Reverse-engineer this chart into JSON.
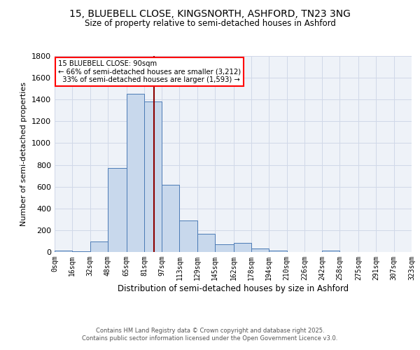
{
  "title_line1": "15, BLUEBELL CLOSE, KINGSNORTH, ASHFORD, TN23 3NG",
  "title_line2": "Size of property relative to semi-detached houses in Ashford",
  "xlabel": "Distribution of semi-detached houses by size in Ashford",
  "ylabel": "Number of semi-detached properties",
  "bar_edges": [
    0,
    16,
    32,
    48,
    65,
    81,
    97,
    113,
    129,
    145,
    162,
    178,
    194,
    210,
    226,
    242,
    258,
    275,
    291,
    307,
    323
  ],
  "bar_heights": [
    10,
    5,
    95,
    770,
    1450,
    1380,
    615,
    290,
    170,
    70,
    85,
    30,
    15,
    0,
    0,
    10,
    0,
    0,
    0,
    0
  ],
  "tick_labels": [
    "0sqm",
    "16sqm",
    "32sqm",
    "48sqm",
    "65sqm",
    "81sqm",
    "97sqm",
    "113sqm",
    "129sqm",
    "145sqm",
    "162sqm",
    "178sqm",
    "194sqm",
    "210sqm",
    "226sqm",
    "242sqm",
    "258sqm",
    "275sqm",
    "291sqm",
    "307sqm",
    "323sqm"
  ],
  "bar_color": "#c8d8ec",
  "bar_edge_color": "#4a7ab5",
  "grid_color": "#d0d8e8",
  "bg_color": "#eef2f8",
  "vline_x": 90,
  "vline_color": "#8b0000",
  "annotation_box_text": "15 BLUEBELL CLOSE: 90sqm\n← 66% of semi-detached houses are smaller (3,212)\n  33% of semi-detached houses are larger (1,593) →",
  "footer_line1": "Contains HM Land Registry data © Crown copyright and database right 2025.",
  "footer_line2": "Contains public sector information licensed under the Open Government Licence v3.0.",
  "ylim": [
    0,
    1800
  ],
  "yticks": [
    0,
    200,
    400,
    600,
    800,
    1000,
    1200,
    1400,
    1600,
    1800
  ]
}
